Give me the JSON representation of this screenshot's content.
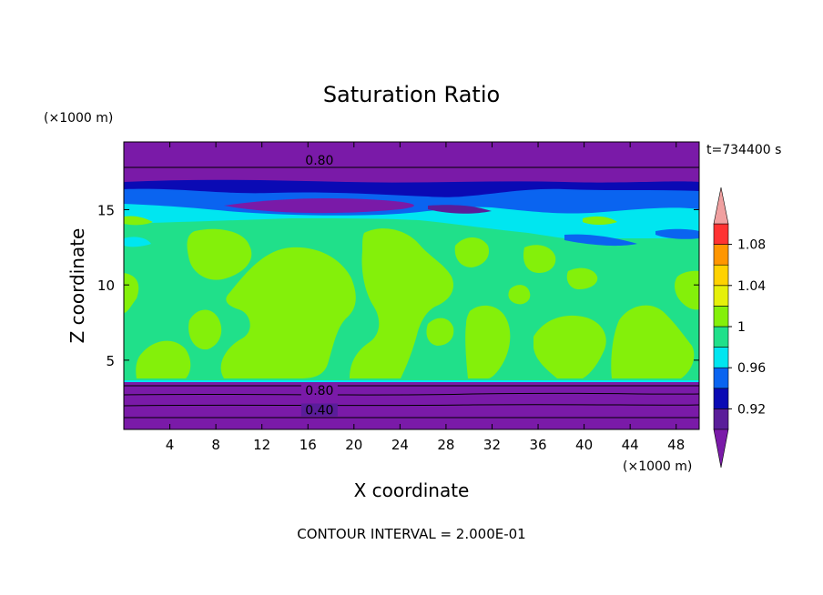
{
  "chart_data": {
    "type": "heatmap",
    "title": "Saturation Ratio",
    "time_label": "t=734400 s",
    "xlabel": "X coordinate",
    "ylabel": "Z coordinate",
    "x_unit": "(×1000 m)",
    "y_unit": "(×1000 m)",
    "footer": "CONTOUR INTERVAL = 2.000E-01",
    "xlim": [
      0,
      50
    ],
    "ylim": [
      0.4,
      19.5
    ],
    "x_ticks": [
      4,
      8,
      12,
      16,
      20,
      24,
      28,
      32,
      36,
      40,
      44,
      48
    ],
    "y_ticks": [
      5,
      10,
      15
    ],
    "contour_labels": [
      {
        "text": "0.80",
        "x": 17,
        "z": 18.3
      },
      {
        "text": "0.80",
        "x": 17,
        "z": 3.0
      },
      {
        "text": "0.40",
        "x": 17,
        "z": 1.7
      }
    ],
    "colorbar": {
      "levels": [
        0.9,
        0.92,
        0.94,
        0.96,
        0.98,
        1.0,
        1.02,
        1.04,
        1.06,
        1.08,
        1.1
      ],
      "labels": [
        "0.92",
        "0.96",
        "1",
        "1.04",
        "1.08"
      ],
      "label_values": [
        0.92,
        0.96,
        1.0,
        1.04,
        1.08
      ],
      "colors": [
        "#5a1d9a",
        "#0a0ab4",
        "#0a64f0",
        "#00e6f0",
        "#20e08a",
        "#84f00a",
        "#e6f00a",
        "#ffd200",
        "#ff9600",
        "#ff3232"
      ],
      "under_color": "#7a1aa8",
      "over_color": "#f0a0a0"
    },
    "colors": {
      "very_low": "#7a1aa8",
      "low": "#5a1d9a",
      "dark_blue": "#0a0ab4",
      "blue": "#0a64f0",
      "cyan": "#00e6f0",
      "green": "#20e08a",
      "lime": "#84f00a"
    }
  }
}
